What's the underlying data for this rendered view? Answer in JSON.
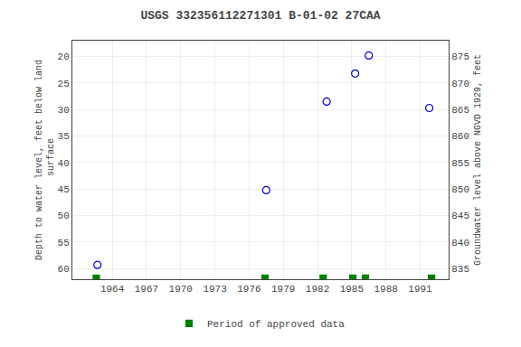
{
  "chart_data": {
    "type": "scatter",
    "title": "USGS 332356112271301 B-01-02 27CAA",
    "y_label": "Depth to water level, feet below land\n surface",
    "y2_label": "Groundwater level above NGVD 1929, feet",
    "xlim": [
      1960.5,
      1993.5
    ],
    "xticks": [
      1964,
      1967,
      1970,
      1973,
      1976,
      1979,
      1982,
      1985,
      1988,
      1991
    ],
    "ylim": [
      62,
      17
    ],
    "yticks": [
      20,
      25,
      30,
      35,
      40,
      45,
      50,
      55,
      60
    ],
    "y2lim": [
      833,
      878
    ],
    "y2ticks": [
      835,
      840,
      845,
      850,
      855,
      860,
      865,
      870,
      875
    ],
    "grid": true,
    "legend": "lower center",
    "series": [
      {
        "x": [
          1962.7,
          1977.5,
          1982.8,
          1985.3,
          1986.5,
          1991.8
        ],
        "values": [
          59.3,
          45.2,
          28.5,
          23.2,
          19.8,
          29.7
        ],
        "color": "#0000cc",
        "marker": "open_circle"
      },
      {
        "name": "Period of approved data",
        "x": [
          1962.6,
          1977.4,
          1982.5,
          1985.1,
          1986.2,
          1992.0
        ],
        "values": [
          61.8,
          61.8,
          61.8,
          61.8,
          61.8,
          61.8
        ],
        "color": "#008000",
        "marker": "square"
      }
    ]
  }
}
